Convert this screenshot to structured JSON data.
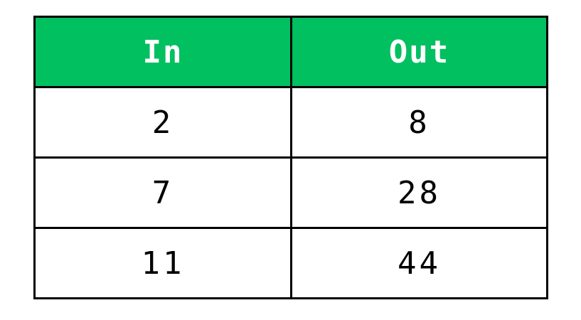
{
  "table": {
    "headers": [
      "In",
      "Out"
    ],
    "rows": [
      [
        "2",
        "8"
      ],
      [
        "7",
        "28"
      ],
      [
        "11",
        "44"
      ]
    ]
  },
  "colors": {
    "header_background": "#00c060",
    "header_text": "#ffffff",
    "border": "#000000",
    "cell_text": "#000000"
  }
}
